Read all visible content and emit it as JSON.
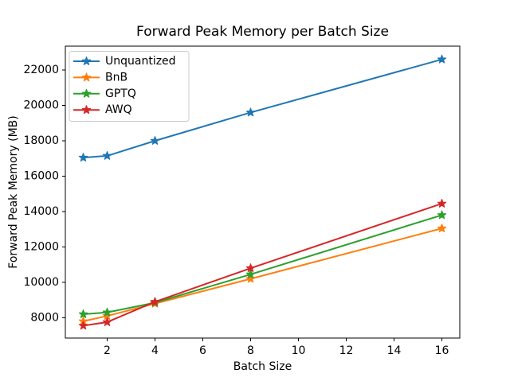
{
  "figure": {
    "background": "#ffffff"
  },
  "chart_data": {
    "type": "line",
    "title": "Forward Peak Memory per Batch Size",
    "xlabel": "Batch Size",
    "ylabel": "Forward Peak Memory (MB)",
    "x": [
      1,
      2,
      4,
      8,
      16
    ],
    "series": [
      {
        "name": "Unquantized",
        "color": "#1f77b4",
        "values": [
          17050,
          17150,
          18000,
          19600,
          22600
        ]
      },
      {
        "name": "BnB",
        "color": "#ff7f0e",
        "values": [
          7800,
          8100,
          8800,
          10200,
          13050
        ]
      },
      {
        "name": "GPTQ",
        "color": "#2ca02c",
        "values": [
          8200,
          8300,
          8850,
          10450,
          13800
        ]
      },
      {
        "name": "AWQ",
        "color": "#d62728",
        "values": [
          7550,
          7750,
          8900,
          10800,
          14450
        ]
      }
    ],
    "marker": "star",
    "xticks": [
      2,
      4,
      6,
      8,
      10,
      12,
      14,
      16
    ],
    "yticks": [
      8000,
      10000,
      12000,
      14000,
      16000,
      18000,
      20000,
      22000
    ],
    "xlim": [
      0.25,
      16.75
    ],
    "ylim": [
      6850,
      23350
    ],
    "grid": false,
    "legend_position": "upper left",
    "legend_labels": [
      "Unquantized",
      "BnB",
      "GPTQ",
      "AWQ"
    ],
    "colors": {
      "spine": "#000000",
      "tick": "#000000",
      "text": "#000000",
      "legend_border": "#cccccc",
      "legend_background": "#ffffff"
    }
  }
}
